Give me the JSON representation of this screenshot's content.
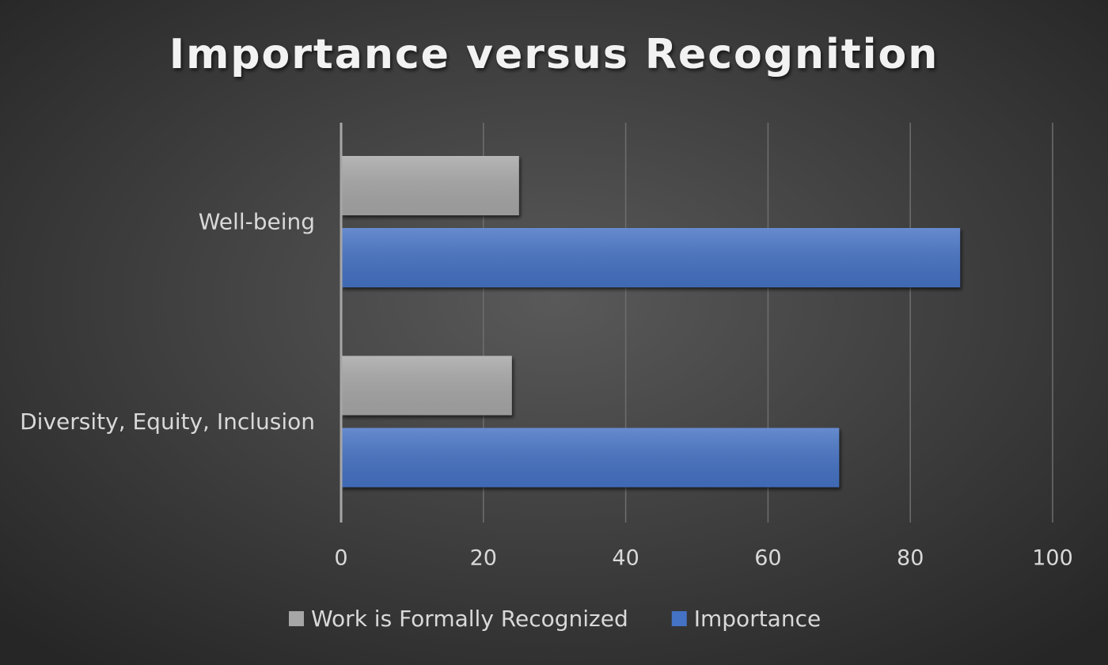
{
  "chart_data": {
    "type": "barh",
    "title": "Importance versus Recognition",
    "categories": [
      "Well-being",
      "Diversity, Equity, Inclusion"
    ],
    "series": [
      {
        "name": "Work is Formally Recognized",
        "color": "#a6a6a6",
        "values": [
          25,
          24
        ]
      },
      {
        "name": "Importance",
        "color": "#4472c4",
        "values": [
          87,
          70
        ]
      }
    ],
    "xlim": [
      0,
      100
    ],
    "xticks": [
      0,
      20,
      40,
      60,
      80,
      100
    ],
    "grid": true,
    "legend": "bottom"
  }
}
